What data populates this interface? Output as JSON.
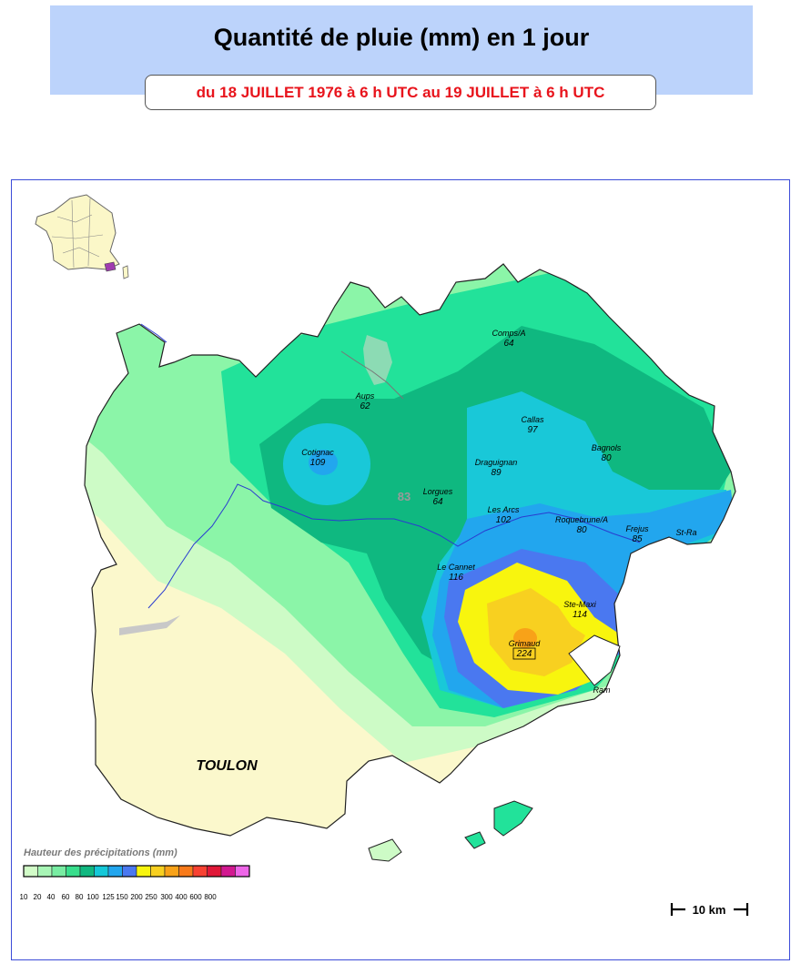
{
  "header": {
    "title": "Quantité de pluie (mm) en 1 jour",
    "subtitle": "du 18 JUILLET 1976 à 6 h UTC au 19 JUILLET à 6 h UTC"
  },
  "map": {
    "department_code": "83",
    "city_label": "TOULON",
    "stations": [
      {
        "name": "Comps/A",
        "value": "64"
      },
      {
        "name": "Aups",
        "value": "62"
      },
      {
        "name": "Callas",
        "value": "97"
      },
      {
        "name": "Cotignac",
        "value": "109"
      },
      {
        "name": "Bagnols",
        "value": "80"
      },
      {
        "name": "Draguignan",
        "value": "89"
      },
      {
        "name": "Lorgues",
        "value": "64"
      },
      {
        "name": "Les Arcs",
        "value": "102"
      },
      {
        "name": "Roquebrune/A",
        "value": "80"
      },
      {
        "name": "Frejus",
        "value": "85"
      },
      {
        "name": "St-Ra",
        "value": ""
      },
      {
        "name": "Le Cannet",
        "value": "116"
      },
      {
        "name": "Ste-Maxi",
        "value": "114"
      },
      {
        "name": "Grimaud",
        "value": "224"
      },
      {
        "name": "Ram",
        "value": ""
      }
    ]
  },
  "legend": {
    "title": "Hauteur des précipitations (mm)",
    "ticks": [
      "10",
      "20",
      "40",
      "60",
      "80",
      "100",
      "125",
      "150",
      "200",
      "250",
      "300",
      "400",
      "600",
      "800"
    ],
    "colors": [
      "#d2fcc8",
      "#a8f6b6",
      "#78eca2",
      "#38de8c",
      "#10b880",
      "#14c8d8",
      "#22a6ee",
      "#4a78f0",
      "#f8f50e",
      "#f8d020",
      "#f8a218",
      "#f87a1a",
      "#f84232",
      "#e01838",
      "#d21890",
      "#ee66e8"
    ]
  },
  "scale": {
    "label": "10 km"
  },
  "colors": {
    "header_bg": "#bcd3fb",
    "subtitle_text": "#e8141c",
    "frame_border": "#3b4bd8",
    "river": "#2a3cd0"
  }
}
